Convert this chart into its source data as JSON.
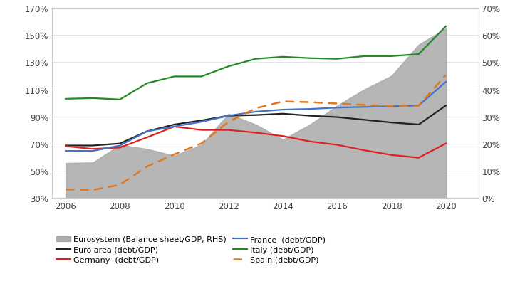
{
  "years": [
    2006,
    2007,
    2008,
    2009,
    2010,
    2011,
    2012,
    2013,
    2014,
    2015,
    2016,
    2017,
    2018,
    2019,
    2020
  ],
  "euro_area": [
    0.685,
    0.685,
    0.7,
    0.79,
    0.84,
    0.87,
    0.905,
    0.91,
    0.92,
    0.905,
    0.895,
    0.875,
    0.855,
    0.84,
    0.98
  ],
  "germany": [
    0.68,
    0.66,
    0.67,
    0.745,
    0.825,
    0.8,
    0.8,
    0.78,
    0.755,
    0.715,
    0.69,
    0.65,
    0.615,
    0.595,
    0.7
  ],
  "france": [
    0.645,
    0.645,
    0.685,
    0.79,
    0.825,
    0.86,
    0.905,
    0.935,
    0.95,
    0.955,
    0.965,
    0.97,
    0.975,
    0.98,
    1.155
  ],
  "italy": [
    1.03,
    1.035,
    1.025,
    1.145,
    1.195,
    1.195,
    1.27,
    1.325,
    1.34,
    1.33,
    1.325,
    1.345,
    1.345,
    1.36,
    1.565
  ],
  "spain": [
    0.36,
    0.357,
    0.395,
    0.53,
    0.62,
    0.7,
    0.86,
    0.96,
    1.01,
    1.005,
    0.995,
    0.985,
    0.975,
    0.98,
    1.205
  ],
  "eurosystem_rhs": [
    0.128,
    0.13,
    0.195,
    0.18,
    0.155,
    0.195,
    0.31,
    0.27,
    0.215,
    0.27,
    0.34,
    0.4,
    0.45,
    0.565,
    0.625
  ],
  "lhs_ticks": [
    0.3,
    0.5,
    0.7,
    0.9,
    1.1,
    1.3,
    1.5,
    1.7
  ],
  "lhs_labels": [
    "30%",
    "50%",
    "70%",
    "90%",
    "110%",
    "130%",
    "150%",
    "170%"
  ],
  "rhs_ticks": [
    0.0,
    0.1,
    0.2,
    0.3,
    0.4,
    0.5,
    0.6,
    0.7
  ],
  "rhs_labels": [
    "0%",
    "10%",
    "20%",
    "30%",
    "40%",
    "50%",
    "60%",
    "70%"
  ],
  "lhs_min": 0.3,
  "lhs_max": 1.7,
  "rhs_min": 0.0,
  "rhs_max": 0.7,
  "color_euro_area": "#222222",
  "color_germany": "#e02020",
  "color_france": "#4472c4",
  "color_italy": "#228b22",
  "color_spain_dashed": "#e07820",
  "color_eurosystem": "#aaaaaa",
  "xticks": [
    2006,
    2008,
    2010,
    2012,
    2014,
    2016,
    2018,
    2020
  ],
  "legend_labels": [
    "Eurosystem (Balance sheet/GDP, RHS)",
    "Euro area (debt/GDP)",
    "Germany  (debt/GDP)",
    "France  (debt/GDP)",
    "Italy (debt/GDP)",
    "Spain (debt/GDP)"
  ]
}
